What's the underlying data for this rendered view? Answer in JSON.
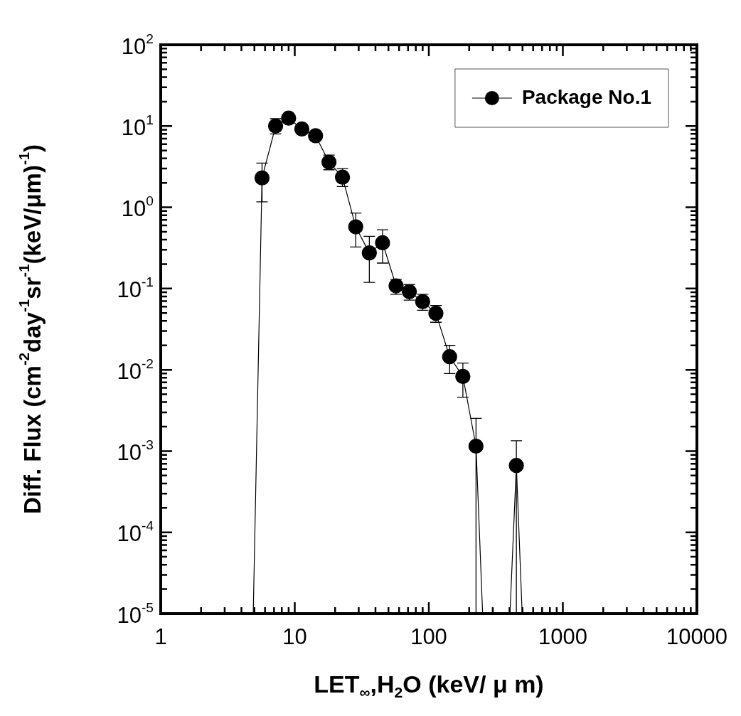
{
  "chart_data": {
    "type": "line",
    "xlabel": "LET$_{∞}$,H$_{2}$O (keV/ μ m)",
    "ylabel": "Diff. Flux (cm$^{-2}$day$^{-1}$sr$^{-1}$(keV/μm)$^{-1}$)",
    "log": "xy",
    "xlim": [
      1,
      10000
    ],
    "xticks": [
      1,
      10,
      100,
      1000,
      10000
    ],
    "ylim": [
      1e-05,
      100
    ],
    "yticks": [
      {
        "value": 1e-05,
        "label": "10$^{-5}$"
      },
      {
        "value": 0.0001,
        "label": "10$^{-4}$"
      },
      {
        "value": 0.001,
        "label": "10$^{-3}$"
      },
      {
        "value": 0.01,
        "label": "10$^{-2}$"
      },
      {
        "value": 0.1,
        "label": "10$^{-1}$"
      },
      {
        "value": 1,
        "label": "10$^{0}$"
      },
      {
        "value": 10,
        "label": "10$^{1}$"
      },
      {
        "value": 100,
        "label": "10$^{2}$"
      }
    ],
    "legend": "top right",
    "marker": "circle",
    "line_style": "solid",
    "series": [
      {
        "name": "Package No.1",
        "color": "#000000",
        "x": [
          4.9,
          5.7,
          7.2,
          9.0,
          11.3,
          14.3,
          18.0,
          22.7,
          28.5,
          36,
          45.2,
          57,
          71.6,
          90,
          113,
          143,
          179.5,
          225,
          252,
          403,
          450,
          497
        ],
        "values": [
          1e-05,
          2.3,
          10.0,
          12.5,
          9.2,
          7.6,
          3.6,
          2.35,
          0.575,
          0.275,
          0.366,
          0.108,
          0.0914,
          0.069,
          0.0496,
          0.0145,
          0.0083,
          0.00115,
          1e-05,
          1e-05,
          0.000665,
          1e-05
        ],
        "errors": [
          null,
          [
            1.17,
            3.5
          ],
          [
            8.0,
            12.3
          ],
          null,
          null,
          null,
          [
            2.9,
            4.4
          ],
          [
            1.8,
            3.0
          ],
          [
            0.325,
            0.85
          ],
          [
            0.119,
            0.44
          ],
          [
            0.206,
            0.53
          ],
          [
            0.085,
            0.13
          ],
          [
            0.072,
            0.112
          ],
          [
            0.054,
            0.085
          ],
          [
            0.0385,
            0.0618
          ],
          [
            0.009,
            0.02
          ],
          [
            0.0046,
            0.0121
          ],
          [
            1e-05,
            0.00253
          ],
          null,
          null,
          [
            1e-05,
            0.00134
          ],
          null
        ]
      }
    ]
  }
}
